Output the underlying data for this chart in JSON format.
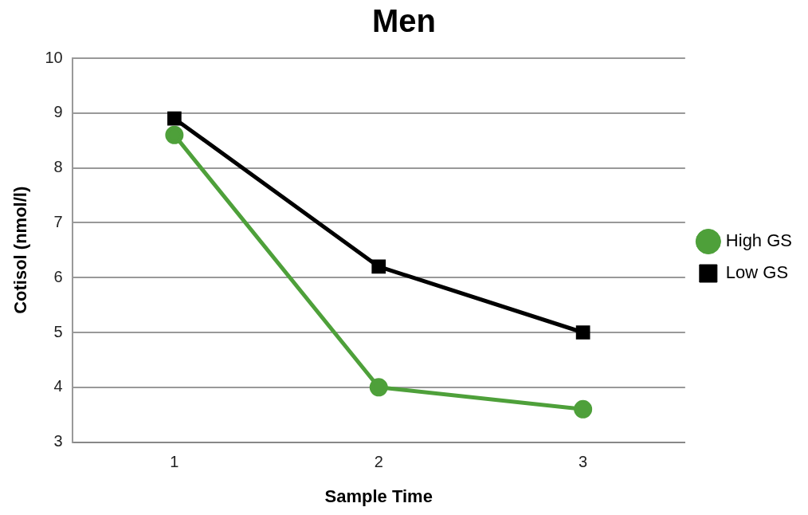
{
  "chart_data": {
    "type": "line",
    "title": "Men",
    "xlabel": "Sample Time",
    "ylabel": "Cotisol (nmol/l)",
    "categories": [
      "1",
      "2",
      "3"
    ],
    "series": [
      {
        "name": "High GS",
        "color": "#4ea03a",
        "values": [
          8.6,
          4.0,
          3.6
        ],
        "marker": "circle"
      },
      {
        "name": "Low GS",
        "color": "#000000",
        "values": [
          8.9,
          6.2,
          5.0
        ],
        "marker": "square"
      }
    ],
    "ylim": [
      3,
      10
    ],
    "yticks": [
      3,
      4,
      5,
      6,
      7,
      8,
      9,
      10
    ],
    "grid": "y",
    "legend": "right"
  }
}
